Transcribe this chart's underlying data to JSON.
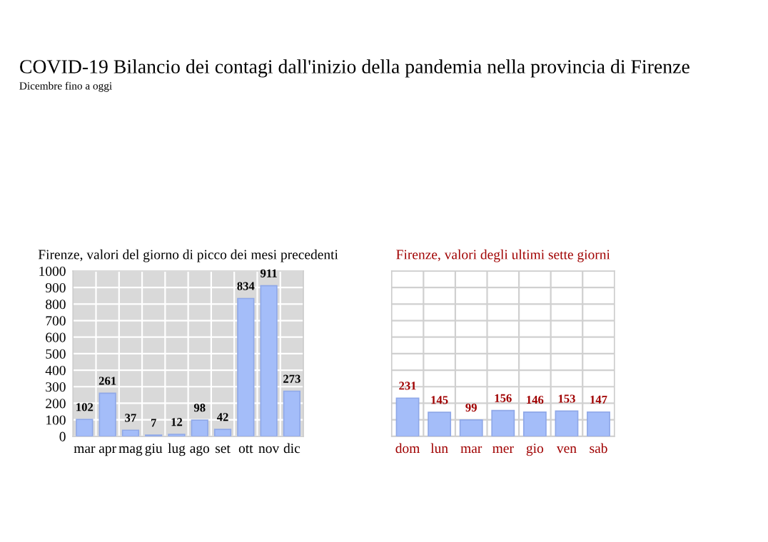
{
  "chart_data": [
    {
      "type": "bar",
      "title": "Firenze, valori del giorno di picco dei mesi precedenti",
      "annotations": [
        "COVID-19 Bilancio dei contagi dall'inizio della pandemia nella provincia di Firenze",
        "Dicembre fino a oggi"
      ],
      "categories": [
        "mar",
        "apr",
        "mag",
        "giu",
        "lug",
        "ago",
        "set",
        "ott",
        "nov",
        "dic"
      ],
      "values": [
        102,
        261,
        37,
        7,
        12,
        98,
        42,
        834,
        911,
        273
      ],
      "color": "#a4bdf9",
      "ylim": [
        0,
        1000
      ],
      "yticks": [
        0,
        100,
        200,
        300,
        400,
        500,
        600,
        700,
        800,
        900,
        1000
      ],
      "grid": true,
      "data_labels": true
    },
    {
      "type": "bar",
      "title": "Firenze, valori degli ultimi sette giorni",
      "categories": [
        "dom",
        "lun",
        "mar",
        "mer",
        "gio",
        "ven",
        "sab"
      ],
      "values": [
        231,
        145,
        99,
        156,
        146,
        153,
        147
      ],
      "color": "#a4bdf9",
      "ylim": [
        0,
        1000
      ],
      "yticks": [
        {
          "value": 0,
          "label": null
        },
        {
          "value": 100,
          "label": null
        },
        {
          "value": 200,
          "label": null
        },
        {
          "value": 300,
          "label": null
        },
        {
          "value": 400,
          "label": null
        },
        {
          "value": 500,
          "label": null
        },
        {
          "value": 600,
          "label": null
        },
        {
          "value": 700,
          "label": null
        },
        {
          "value": 800,
          "label": null
        },
        {
          "value": 900,
          "label": null
        },
        {
          "value": 1000,
          "label": null
        }
      ],
      "grid": true,
      "data_labels": true,
      "tick_labels": "x"
    }
  ]
}
